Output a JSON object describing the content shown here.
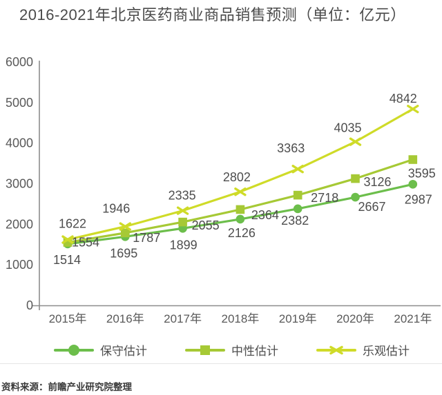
{
  "page": {
    "title": "2016-2021年北京医药商业商品销售预测（单位：亿元）",
    "source": "资料来源：前瞻产业研究院整理"
  },
  "colors": {
    "conservative": "#6CBE4B",
    "neutral": "#A6C935",
    "optimistic": "#CFDB28",
    "axis": "#8C8C8C",
    "tick_text": "#595959",
    "label_text": "#4D4D4D",
    "title_text": "#4A4A4A"
  },
  "legend": {
    "items": [
      {
        "label": "保守估计",
        "marker": "circle",
        "color_key": "conservative"
      },
      {
        "label": "中性估计",
        "marker": "square",
        "color_key": "neutral"
      },
      {
        "label": "乐观估计",
        "marker": "x",
        "color_key": "optimistic"
      }
    ]
  },
  "chart_data": {
    "type": "line",
    "title": "2016-2021年北京医药商业商品销售预测（单位：亿元）",
    "unit": "亿元",
    "categories": [
      "2015年",
      "2016年",
      "2017年",
      "2018年",
      "2019年",
      "2020年",
      "2021年"
    ],
    "series": [
      {
        "name": "保守估计",
        "marker": "circle",
        "color_key": "conservative",
        "values": [
          1514,
          1695,
          1899,
          2126,
          2382,
          2667,
          2987
        ]
      },
      {
        "name": "中性估计",
        "marker": "square",
        "color_key": "neutral",
        "values": [
          1554,
          1787,
          2055,
          2364,
          2718,
          3126,
          3595
        ]
      },
      {
        "name": "乐观估计",
        "marker": "x",
        "color_key": "optimistic",
        "values": [
          1622,
          1946,
          2335,
          2802,
          3363,
          4035,
          4842
        ]
      }
    ],
    "ylim": [
      0,
      6000
    ],
    "ytick_step": 1000,
    "grid": false,
    "legend_position": "bottom",
    "label_offsets": [
      [
        [
          -1,
          23
        ],
        [
          -2,
          24
        ],
        [
          1,
          24
        ],
        [
          2,
          20
        ],
        [
          -4,
          17
        ],
        [
          24,
          14
        ],
        [
          8,
          22
        ]
      ],
      [
        [
          26,
          0
        ],
        [
          31,
          7
        ],
        [
          33,
          5
        ],
        [
          36,
          8
        ],
        [
          39,
          4
        ],
        [
          32,
          5
        ],
        [
          13,
          20
        ]
      ],
      [
        [
          7,
          -23
        ],
        [
          -13,
          -26
        ],
        [
          -1,
          -22
        ],
        [
          -5,
          -21
        ],
        [
          -10,
          -30
        ],
        [
          -11,
          -20
        ],
        [
          -14,
          -15
        ]
      ]
    ]
  }
}
